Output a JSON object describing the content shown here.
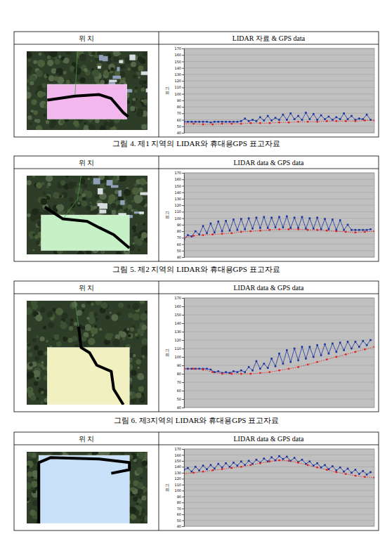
{
  "figures": [
    {
      "header": [
        "위 치",
        "LIDAR 자료 & GPS data"
      ],
      "caption": "그림 4. 제1 지역의 LIDAR와 휴대용GPS 표고자료"
    },
    {
      "header": [
        "위 치",
        "LIDAR data & GPS data"
      ],
      "caption": "그림 5. 제2 지역의 LIDAR와 휴대용GPS 표고자료"
    },
    {
      "header": [
        "위 치",
        "LIDAR data & GPS data"
      ],
      "caption": "그림 6. 제3지역의 LIDAR와 휴대용GPS 표고자료"
    },
    {
      "header": [
        "위 치",
        "LIDAR data & GPS data"
      ]
    }
  ],
  "chart_data": [
    {
      "type": "line",
      "y_label": "표고",
      "tick_labels": "y",
      "grid": true,
      "xlim": [
        0,
        100
      ],
      "ylim": [
        40,
        170
      ],
      "yticks": [
        40,
        50,
        60,
        70,
        80,
        90,
        100,
        110,
        120,
        130,
        140,
        150,
        160,
        170
      ],
      "series": [
        {
          "color": "#1c34a0",
          "marker": "square",
          "line_style": "solid",
          "x": [
            0,
            2,
            4,
            6,
            8,
            10,
            12,
            14,
            16,
            18,
            20,
            22,
            24,
            26,
            28,
            30,
            32,
            34,
            36,
            38,
            40,
            42,
            44,
            46,
            48,
            50,
            52,
            54,
            56,
            58,
            60,
            62,
            64,
            66,
            68,
            70,
            72,
            74,
            76,
            78,
            80,
            82,
            84,
            86,
            88,
            90,
            92,
            94,
            96,
            98
          ],
          "values": [
            57,
            57,
            57,
            57,
            57,
            57,
            57,
            56,
            57,
            57,
            57,
            57,
            57,
            57,
            57,
            58,
            62,
            58,
            60,
            58,
            64,
            59,
            66,
            59,
            63,
            60,
            68,
            60,
            70,
            61,
            66,
            60,
            71,
            61,
            69,
            60,
            67,
            61,
            65,
            60,
            64,
            61,
            70,
            61,
            66,
            60,
            62,
            61,
            68,
            60
          ]
        },
        {
          "color": "#e02020",
          "marker": "circle",
          "line_style": "dotted",
          "x": [
            0,
            5,
            10,
            15,
            20,
            25,
            30,
            35,
            40,
            45,
            50,
            55,
            60,
            65,
            70,
            75,
            80,
            85,
            90,
            95,
            100
          ],
          "values": [
            54,
            54,
            53,
            53,
            54,
            54,
            54,
            55,
            55,
            55,
            56,
            56,
            57,
            57,
            57,
            58,
            58,
            58,
            58,
            59,
            59
          ]
        }
      ]
    },
    {
      "type": "line",
      "y_label": "표고",
      "tick_labels": "y",
      "grid": true,
      "xlim": [
        0,
        100
      ],
      "ylim": [
        40,
        170
      ],
      "yticks": [
        40,
        50,
        60,
        70,
        80,
        90,
        100,
        110,
        120,
        130,
        140,
        150,
        160,
        170
      ],
      "series": [
        {
          "color": "#1c34a0",
          "marker": "square",
          "line_style": "solid",
          "x": [
            0,
            2,
            4,
            6,
            8,
            10,
            12,
            14,
            16,
            18,
            20,
            22,
            24,
            26,
            28,
            30,
            32,
            34,
            36,
            38,
            40,
            42,
            44,
            46,
            48,
            50,
            52,
            54,
            56,
            58,
            60,
            62,
            64,
            66,
            68,
            70,
            72,
            74,
            76,
            78,
            80,
            82,
            84,
            86,
            88,
            90,
            92,
            94,
            96,
            98
          ],
          "values": [
            68,
            74,
            72,
            80,
            75,
            88,
            77,
            92,
            78,
            95,
            80,
            96,
            81,
            98,
            82,
            99,
            83,
            100,
            84,
            101,
            85,
            102,
            85,
            101,
            86,
            102,
            86,
            103,
            85,
            101,
            85,
            102,
            84,
            100,
            84,
            101,
            83,
            99,
            83,
            98,
            82,
            97,
            82,
            90,
            82,
            82,
            82,
            82,
            82,
            83
          ]
        },
        {
          "color": "#e02020",
          "marker": "circle",
          "line_style": "dotted",
          "x": [
            0,
            5,
            10,
            15,
            20,
            25,
            30,
            35,
            40,
            45,
            50,
            55,
            60,
            65,
            70,
            75,
            80,
            85,
            90,
            95,
            100
          ],
          "values": [
            70,
            73,
            74,
            75,
            76,
            77,
            79,
            80,
            81,
            82,
            83,
            83,
            83,
            82,
            82,
            81,
            80,
            79,
            78,
            79,
            80
          ]
        }
      ]
    },
    {
      "type": "line",
      "y_label": "표고",
      "tick_labels": "y",
      "grid": true,
      "xlim": [
        0,
        100
      ],
      "ylim": [
        40,
        170
      ],
      "yticks": [
        40,
        50,
        60,
        70,
        80,
        90,
        100,
        110,
        120,
        130,
        140,
        150,
        160,
        170
      ],
      "series": [
        {
          "color": "#1c34a0",
          "marker": "square",
          "line_style": "solid",
          "x": [
            0,
            2,
            4,
            6,
            8,
            10,
            12,
            14,
            16,
            18,
            20,
            22,
            24,
            26,
            28,
            30,
            32,
            34,
            36,
            38,
            40,
            42,
            44,
            46,
            48,
            50,
            52,
            54,
            56,
            58,
            60,
            62,
            64,
            66,
            68,
            70,
            72,
            74,
            76,
            78,
            80,
            82,
            84,
            86,
            88,
            90,
            92,
            94,
            96,
            98
          ],
          "values": [
            86,
            86,
            86,
            86,
            86,
            86,
            86,
            85,
            82,
            83,
            81,
            82,
            81,
            83,
            82,
            84,
            82,
            88,
            84,
            95,
            86,
            92,
            87,
            98,
            89,
            104,
            92,
            108,
            94,
            110,
            96,
            112,
            98,
            112,
            100,
            114,
            102,
            115,
            104,
            116,
            106,
            117,
            108,
            118,
            110,
            118,
            112,
            119,
            114,
            120
          ]
        },
        {
          "color": "#e02020",
          "marker": "circle",
          "line_style": "dotted",
          "x": [
            0,
            5,
            10,
            15,
            20,
            25,
            30,
            35,
            40,
            45,
            50,
            55,
            60,
            65,
            70,
            75,
            80,
            85,
            90,
            95,
            100
          ],
          "values": [
            86,
            86,
            85,
            82,
            80,
            80,
            80,
            80,
            81,
            82,
            84,
            86,
            88,
            91,
            94,
            97,
            100,
            103,
            106,
            109,
            112
          ]
        }
      ]
    },
    {
      "type": "line",
      "y_label": "표고",
      "tick_labels": "y",
      "grid": true,
      "xlim": [
        0,
        100
      ],
      "ylim": [
        40,
        170
      ],
      "yticks": [
        40,
        50,
        60,
        70,
        80,
        90,
        100,
        110,
        120,
        130,
        140,
        150,
        160,
        170
      ],
      "series": [
        {
          "color": "#1c34a0",
          "marker": "square",
          "line_style": "solid",
          "x": [
            0,
            2,
            4,
            6,
            8,
            10,
            12,
            14,
            16,
            18,
            20,
            22,
            24,
            26,
            28,
            30,
            32,
            34,
            36,
            38,
            40,
            42,
            44,
            46,
            48,
            50,
            52,
            54,
            56,
            58,
            60,
            62,
            64,
            66,
            68,
            70,
            72,
            74,
            76,
            78,
            80,
            82,
            84,
            86,
            88,
            90,
            92,
            94,
            96,
            98
          ],
          "values": [
            135,
            138,
            132,
            140,
            134,
            142,
            136,
            143,
            137,
            145,
            139,
            146,
            140,
            147,
            142,
            149,
            143,
            150,
            145,
            152,
            147,
            154,
            149,
            156,
            151,
            158,
            153,
            157,
            150,
            155,
            148,
            152,
            145,
            149,
            142,
            146,
            139,
            143,
            136,
            141,
            134,
            139,
            132,
            137,
            130,
            135,
            128,
            133,
            127,
            131
          ]
        },
        {
          "color": "#e02020",
          "marker": "circle",
          "line_style": "dotted",
          "x": [
            0,
            5,
            10,
            15,
            20,
            25,
            30,
            35,
            40,
            45,
            50,
            55,
            60,
            65,
            70,
            75,
            80,
            85,
            90,
            95,
            100
          ],
          "values": [
            128,
            130,
            132,
            134,
            136,
            138,
            140,
            143,
            146,
            149,
            151,
            150,
            147,
            143,
            139,
            135,
            131,
            128,
            125,
            123,
            122
          ]
        }
      ]
    }
  ]
}
